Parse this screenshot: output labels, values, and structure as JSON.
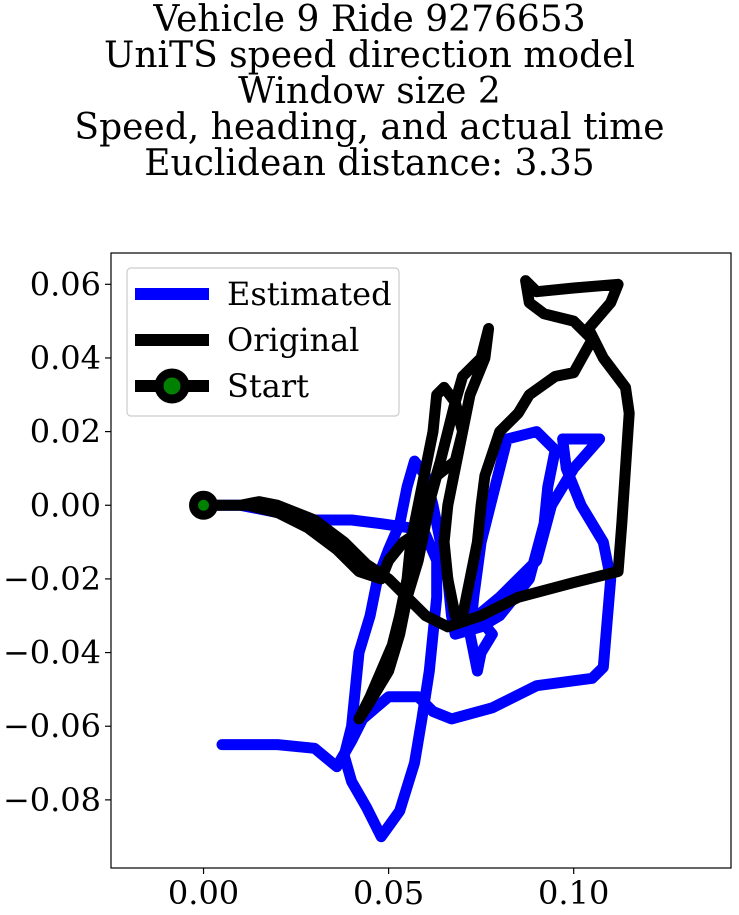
{
  "chart_data": {
    "type": "line",
    "title_lines": [
      "Vehicle 9 Ride 9276653",
      "UniTS speed direction model",
      "Window size 2",
      "Speed, heading, and actual time",
      "Euclidean distance: 3.35"
    ],
    "xlim": [
      -0.025,
      0.1425
    ],
    "ylim": [
      -0.0985,
      0.0685
    ],
    "x_ticks": [
      0.0,
      0.05,
      0.1
    ],
    "x_tick_labels": [
      "0.00",
      "0.05",
      "0.10"
    ],
    "y_ticks": [
      0.06,
      0.04,
      0.02,
      0.0,
      -0.02,
      -0.04,
      -0.06,
      -0.08
    ],
    "y_tick_labels": [
      "0.06",
      "0.04",
      "0.02",
      "0.00",
      "−0.02",
      "−0.04",
      "−0.06",
      "−0.08"
    ],
    "grid": false,
    "legend": {
      "placement": "upper-left",
      "entries": [
        "Estimated",
        "Original",
        "Start"
      ]
    },
    "series": [
      {
        "name": "Estimated",
        "color": "#0000ff",
        "points": [
          [
            0.005,
            -0.065
          ],
          [
            0.02,
            -0.065
          ],
          [
            0.03,
            -0.066
          ],
          [
            0.036,
            -0.071
          ],
          [
            0.04,
            -0.064
          ],
          [
            0.043,
            -0.058
          ],
          [
            0.05,
            -0.052
          ],
          [
            0.058,
            -0.052
          ],
          [
            0.062,
            -0.056
          ],
          [
            0.067,
            -0.058
          ],
          [
            0.078,
            -0.055
          ],
          [
            0.09,
            -0.049
          ],
          [
            0.105,
            -0.047
          ],
          [
            0.108,
            -0.044
          ],
          [
            0.109,
            -0.032
          ],
          [
            0.11,
            -0.02
          ],
          [
            0.108,
            -0.01
          ],
          [
            0.102,
            0.0
          ],
          [
            0.098,
            0.01
          ],
          [
            0.097,
            0.018
          ],
          [
            0.107,
            0.018
          ],
          [
            0.1,
            0.01
          ],
          [
            0.094,
            0.0
          ],
          [
            0.09,
            -0.015
          ],
          [
            0.08,
            -0.025
          ],
          [
            0.074,
            -0.03
          ],
          [
            0.078,
            -0.035
          ],
          [
            0.075,
            -0.04
          ],
          [
            0.074,
            -0.045
          ],
          [
            0.072,
            -0.035
          ],
          [
            0.073,
            -0.025
          ],
          [
            0.075,
            -0.01
          ],
          [
            0.08,
            0.01
          ],
          [
            0.082,
            0.018
          ],
          [
            0.09,
            0.02
          ],
          [
            0.095,
            0.015
          ],
          [
            0.093,
            0.005
          ],
          [
            0.092,
            -0.005
          ],
          [
            0.088,
            -0.02
          ],
          [
            0.08,
            -0.03
          ],
          [
            0.075,
            -0.033
          ],
          [
            0.068,
            -0.035
          ],
          [
            0.067,
            -0.03
          ],
          [
            0.066,
            -0.02
          ],
          [
            0.064,
            -0.01
          ],
          [
            0.062,
            0.0
          ],
          [
            0.06,
            0.008
          ],
          [
            0.057,
            0.012
          ],
          [
            0.055,
            0.005
          ],
          [
            0.053,
            -0.005
          ],
          [
            0.05,
            -0.012
          ],
          [
            0.047,
            -0.02
          ],
          [
            0.045,
            -0.03
          ],
          [
            0.042,
            -0.04
          ],
          [
            0.041,
            -0.05
          ],
          [
            0.04,
            -0.06
          ],
          [
            0.038,
            -0.068
          ],
          [
            0.04,
            -0.075
          ],
          [
            0.044,
            -0.082
          ],
          [
            0.048,
            -0.09
          ],
          [
            0.053,
            -0.083
          ],
          [
            0.057,
            -0.07
          ],
          [
            0.059,
            -0.058
          ],
          [
            0.061,
            -0.045
          ],
          [
            0.062,
            -0.035
          ],
          [
            0.063,
            -0.025
          ],
          [
            0.063,
            -0.015
          ],
          [
            0.06,
            -0.008
          ],
          [
            0.055,
            -0.006
          ],
          [
            0.048,
            -0.005
          ],
          [
            0.04,
            -0.004
          ],
          [
            0.03,
            -0.004
          ],
          [
            0.02,
            -0.002
          ],
          [
            0.01,
            0.0
          ],
          [
            0.0,
            0.0
          ]
        ]
      },
      {
        "name": "Original",
        "color": "#000000",
        "points": [
          [
            0.0,
            0.0
          ],
          [
            0.01,
            0.0
          ],
          [
            0.015,
            0.001
          ],
          [
            0.02,
            0.0
          ],
          [
            0.03,
            -0.004
          ],
          [
            0.038,
            -0.01
          ],
          [
            0.044,
            -0.016
          ],
          [
            0.05,
            -0.02
          ],
          [
            0.055,
            -0.025
          ],
          [
            0.06,
            -0.03
          ],
          [
            0.066,
            -0.033
          ],
          [
            0.075,
            -0.03
          ],
          [
            0.085,
            -0.025
          ],
          [
            0.1,
            -0.021
          ],
          [
            0.112,
            -0.018
          ],
          [
            0.113,
            -0.005
          ],
          [
            0.114,
            0.01
          ],
          [
            0.115,
            0.025
          ],
          [
            0.114,
            0.032
          ],
          [
            0.108,
            0.04
          ],
          [
            0.104,
            0.048
          ],
          [
            0.11,
            0.055
          ],
          [
            0.112,
            0.06
          ],
          [
            0.1,
            0.059
          ],
          [
            0.09,
            0.058
          ],
          [
            0.087,
            0.061
          ],
          [
            0.088,
            0.055
          ],
          [
            0.092,
            0.052
          ],
          [
            0.1,
            0.05
          ],
          [
            0.105,
            0.045
          ],
          [
            0.1,
            0.036
          ],
          [
            0.095,
            0.035
          ],
          [
            0.088,
            0.03
          ],
          [
            0.085,
            0.025
          ],
          [
            0.08,
            0.02
          ],
          [
            0.078,
            0.014
          ],
          [
            0.076,
            0.008
          ],
          [
            0.075,
            0.0
          ],
          [
            0.074,
            -0.01
          ],
          [
            0.072,
            -0.02
          ],
          [
            0.07,
            -0.03
          ],
          [
            0.068,
            -0.03
          ],
          [
            0.066,
            -0.02
          ],
          [
            0.065,
            -0.01
          ],
          [
            0.066,
            0.0
          ],
          [
            0.068,
            0.01
          ],
          [
            0.07,
            0.02
          ],
          [
            0.072,
            0.03
          ],
          [
            0.076,
            0.04
          ],
          [
            0.077,
            0.048
          ],
          [
            0.075,
            0.04
          ],
          [
            0.07,
            0.035
          ],
          [
            0.068,
            0.028
          ],
          [
            0.066,
            0.02
          ],
          [
            0.064,
            0.012
          ],
          [
            0.062,
            0.005
          ],
          [
            0.06,
            -0.005
          ],
          [
            0.058,
            -0.015
          ],
          [
            0.055,
            -0.025
          ],
          [
            0.053,
            -0.035
          ],
          [
            0.05,
            -0.045
          ],
          [
            0.047,
            -0.05
          ],
          [
            0.044,
            -0.055
          ],
          [
            0.042,
            -0.058
          ],
          [
            0.045,
            -0.052
          ],
          [
            0.048,
            -0.045
          ],
          [
            0.051,
            -0.038
          ],
          [
            0.053,
            -0.03
          ],
          [
            0.055,
            -0.02
          ],
          [
            0.056,
            -0.01
          ],
          [
            0.058,
            0.0
          ],
          [
            0.06,
            0.01
          ],
          [
            0.062,
            0.02
          ],
          [
            0.063,
            0.03
          ],
          [
            0.065,
            0.032
          ],
          [
            0.068,
            0.028
          ],
          [
            0.07,
            0.02
          ],
          [
            0.068,
            0.012
          ],
          [
            0.063,
            0.008
          ],
          [
            0.06,
            -0.003
          ],
          [
            0.057,
            -0.008
          ],
          [
            0.054,
            -0.01
          ],
          [
            0.05,
            -0.015
          ],
          [
            0.048,
            -0.02
          ],
          [
            0.042,
            -0.018
          ],
          [
            0.036,
            -0.012
          ],
          [
            0.028,
            -0.006
          ],
          [
            0.02,
            -0.002
          ],
          [
            0.012,
            0.0
          ],
          [
            0.005,
            0.0
          ]
        ]
      }
    ],
    "start": {
      "name": "Start",
      "x": 0.0,
      "y": 0.0,
      "outer_color": "#000000",
      "inner_color": "#008000"
    }
  }
}
